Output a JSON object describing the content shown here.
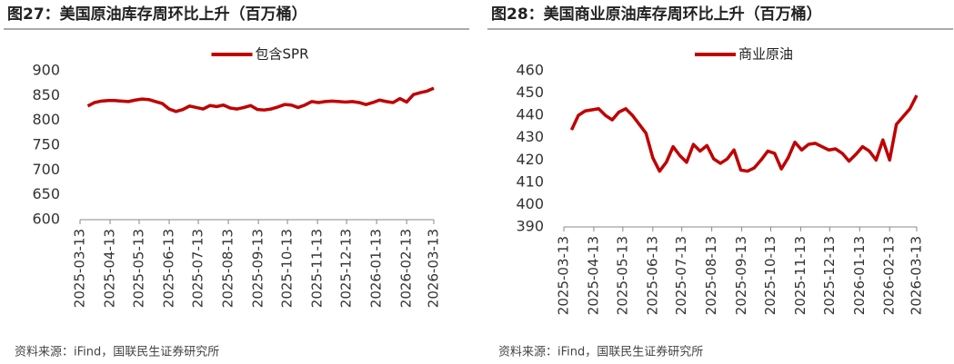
{
  "chart_data": [
    {
      "type": "line",
      "title": "图27：美国原油库存周环比上升（百万桶）",
      "source": "资料来源：iFind，国联民生证券研究所",
      "x": [
        "2025-03-21",
        "2025-03-28",
        "2025-04-04",
        "2025-04-11",
        "2025-04-18",
        "2025-04-25",
        "2025-05-02",
        "2025-05-09",
        "2025-05-16",
        "2025-05-23",
        "2025-05-30",
        "2025-06-06",
        "2025-06-13",
        "2025-06-20",
        "2025-06-27",
        "2025-07-04",
        "2025-07-11",
        "2025-07-18",
        "2025-07-25",
        "2025-08-01",
        "2025-08-08",
        "2025-08-15",
        "2025-08-22",
        "2025-08-29",
        "2025-09-05",
        "2025-09-12",
        "2025-09-19",
        "2025-09-26",
        "2025-10-03",
        "2025-10-10",
        "2025-10-17",
        "2025-10-24",
        "2025-10-31",
        "2025-11-07",
        "2025-11-14",
        "2025-11-21",
        "2025-11-28",
        "2025-12-05",
        "2025-12-12",
        "2025-12-19",
        "2025-12-26",
        "2026-01-02",
        "2026-01-09",
        "2026-01-16",
        "2026-01-23",
        "2026-01-30",
        "2026-02-06",
        "2026-02-13",
        "2026-02-20",
        "2026-02-27",
        "2026-03-06",
        "2026-03-13"
      ],
      "series": [
        {
          "name": "包含SPR",
          "color": "#c00000",
          "values": [
            829,
            836,
            839,
            840,
            840,
            839,
            838,
            841,
            843,
            842,
            838,
            834,
            823,
            818,
            822,
            829,
            826,
            823,
            830,
            828,
            831,
            825,
            823,
            826,
            830,
            822,
            821,
            823,
            827,
            832,
            831,
            826,
            831,
            838,
            836,
            838,
            839,
            838,
            837,
            838,
            836,
            832,
            836,
            841,
            838,
            836,
            844,
            837,
            852,
            856,
            859,
            865
          ]
        }
      ],
      "xlim": [
        "2025-03-13",
        "2026-03-13"
      ],
      "xticks": [
        "2025-03-13",
        "2025-04-13",
        "2025-05-13",
        "2025-06-13",
        "2025-07-13",
        "2025-08-13",
        "2025-09-13",
        "2025-10-13",
        "2025-11-13",
        "2025-12-13",
        "2026-01-13",
        "2026-02-13",
        "2026-03-13"
      ],
      "ylim": [
        600,
        900
      ],
      "yticks": [
        600,
        650,
        700,
        750,
        800,
        850,
        900
      ],
      "grid": false,
      "legend": "top"
    },
    {
      "type": "line",
      "title": "图28：美国商业原油库存周环比上升（百万桶）",
      "source": "资料来源：iFind，国联民生证券研究所",
      "x": [
        "2025-03-21",
        "2025-03-28",
        "2025-04-04",
        "2025-04-11",
        "2025-04-18",
        "2025-04-25",
        "2025-05-02",
        "2025-05-09",
        "2025-05-16",
        "2025-05-23",
        "2025-05-30",
        "2025-06-06",
        "2025-06-13",
        "2025-06-20",
        "2025-06-27",
        "2025-07-04",
        "2025-07-11",
        "2025-07-18",
        "2025-07-25",
        "2025-08-01",
        "2025-08-08",
        "2025-08-15",
        "2025-08-22",
        "2025-08-29",
        "2025-09-05",
        "2025-09-12",
        "2025-09-19",
        "2025-09-26",
        "2025-10-03",
        "2025-10-10",
        "2025-10-17",
        "2025-10-24",
        "2025-10-31",
        "2025-11-07",
        "2025-11-14",
        "2025-11-21",
        "2025-11-28",
        "2025-12-05",
        "2025-12-12",
        "2025-12-19",
        "2025-12-26",
        "2026-01-02",
        "2026-01-09",
        "2026-01-16",
        "2026-01-23",
        "2026-01-30",
        "2026-02-06",
        "2026-02-13",
        "2026-02-20",
        "2026-02-27",
        "2026-03-06",
        "2026-03-13"
      ],
      "series": [
        {
          "name": "商业原油",
          "color": "#c00000",
          "values": [
            433.5,
            440,
            442,
            442.5,
            443,
            440,
            438,
            441.5,
            443,
            440,
            436,
            432,
            421,
            415,
            419,
            426,
            422,
            419,
            427,
            424,
            426.5,
            420.5,
            418.5,
            420.5,
            424.5,
            415.5,
            415,
            416.5,
            420,
            424,
            423,
            416,
            421,
            428,
            424.5,
            427,
            427.5,
            426,
            424.5,
            425,
            423,
            419.5,
            422.5,
            426,
            424,
            420,
            429,
            420,
            436,
            439.5,
            443,
            449
          ]
        }
      ],
      "xlim": [
        "2025-03-13",
        "2026-03-13"
      ],
      "xticks": [
        "2025-03-13",
        "2025-04-13",
        "2025-05-13",
        "2025-06-13",
        "2025-07-13",
        "2025-08-13",
        "2025-09-13",
        "2025-10-13",
        "2025-11-13",
        "2025-12-13",
        "2026-01-13",
        "2026-02-13",
        "2026-03-13"
      ],
      "ylim": [
        390,
        460
      ],
      "yticks": [
        390,
        400,
        410,
        420,
        430,
        440,
        450,
        460
      ],
      "grid": false,
      "legend": "top"
    }
  ]
}
